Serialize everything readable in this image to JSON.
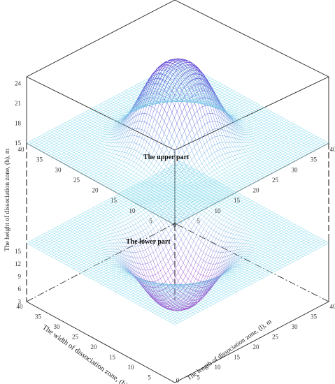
{
  "chart_data": {
    "type": "surface3d",
    "title": "",
    "xlabel": "The length of dissociation zone, (l), m",
    "ylabel": "The width of dissociation zone, (b), m",
    "zlabel": "The height of dissociation zone, (h), m",
    "x_ticks": [
      "0",
      "5",
      "10",
      "15",
      "20",
      "25",
      "30",
      "35",
      "40"
    ],
    "y_ticks": [
      "0",
      "5",
      "10",
      "15",
      "20",
      "25",
      "30",
      "35",
      "40"
    ],
    "z_ticks_upper": [
      "15",
      "18",
      "21",
      "24"
    ],
    "z_ticks_lower": [
      "3",
      "6",
      "9",
      "12",
      "15"
    ],
    "upper_x_ticks": [
      "0",
      "5",
      "10",
      "15",
      "20",
      "25",
      "30",
      "35",
      "40"
    ],
    "upper_y_ticks": [
      "0",
      "5",
      "10",
      "15",
      "20",
      "25",
      "30",
      "35",
      "40"
    ],
    "xlim": [
      0,
      40
    ],
    "ylim": [
      0,
      40
    ],
    "surfaces": [
      {
        "label": "The upper part",
        "base": 15,
        "peak": 27,
        "peak_center": [
          20,
          20
        ],
        "shape": "dome"
      },
      {
        "label": "The lower part",
        "base": 15,
        "trough": 3,
        "trough_center": [
          20,
          20
        ],
        "shape": "basin"
      }
    ],
    "colors": {
      "mesh": "#7fd8ea",
      "peak": "#5a3fd6",
      "trough": "#9a4fd0",
      "frame": "#222222",
      "dashed": "#333333"
    },
    "grid": true
  }
}
